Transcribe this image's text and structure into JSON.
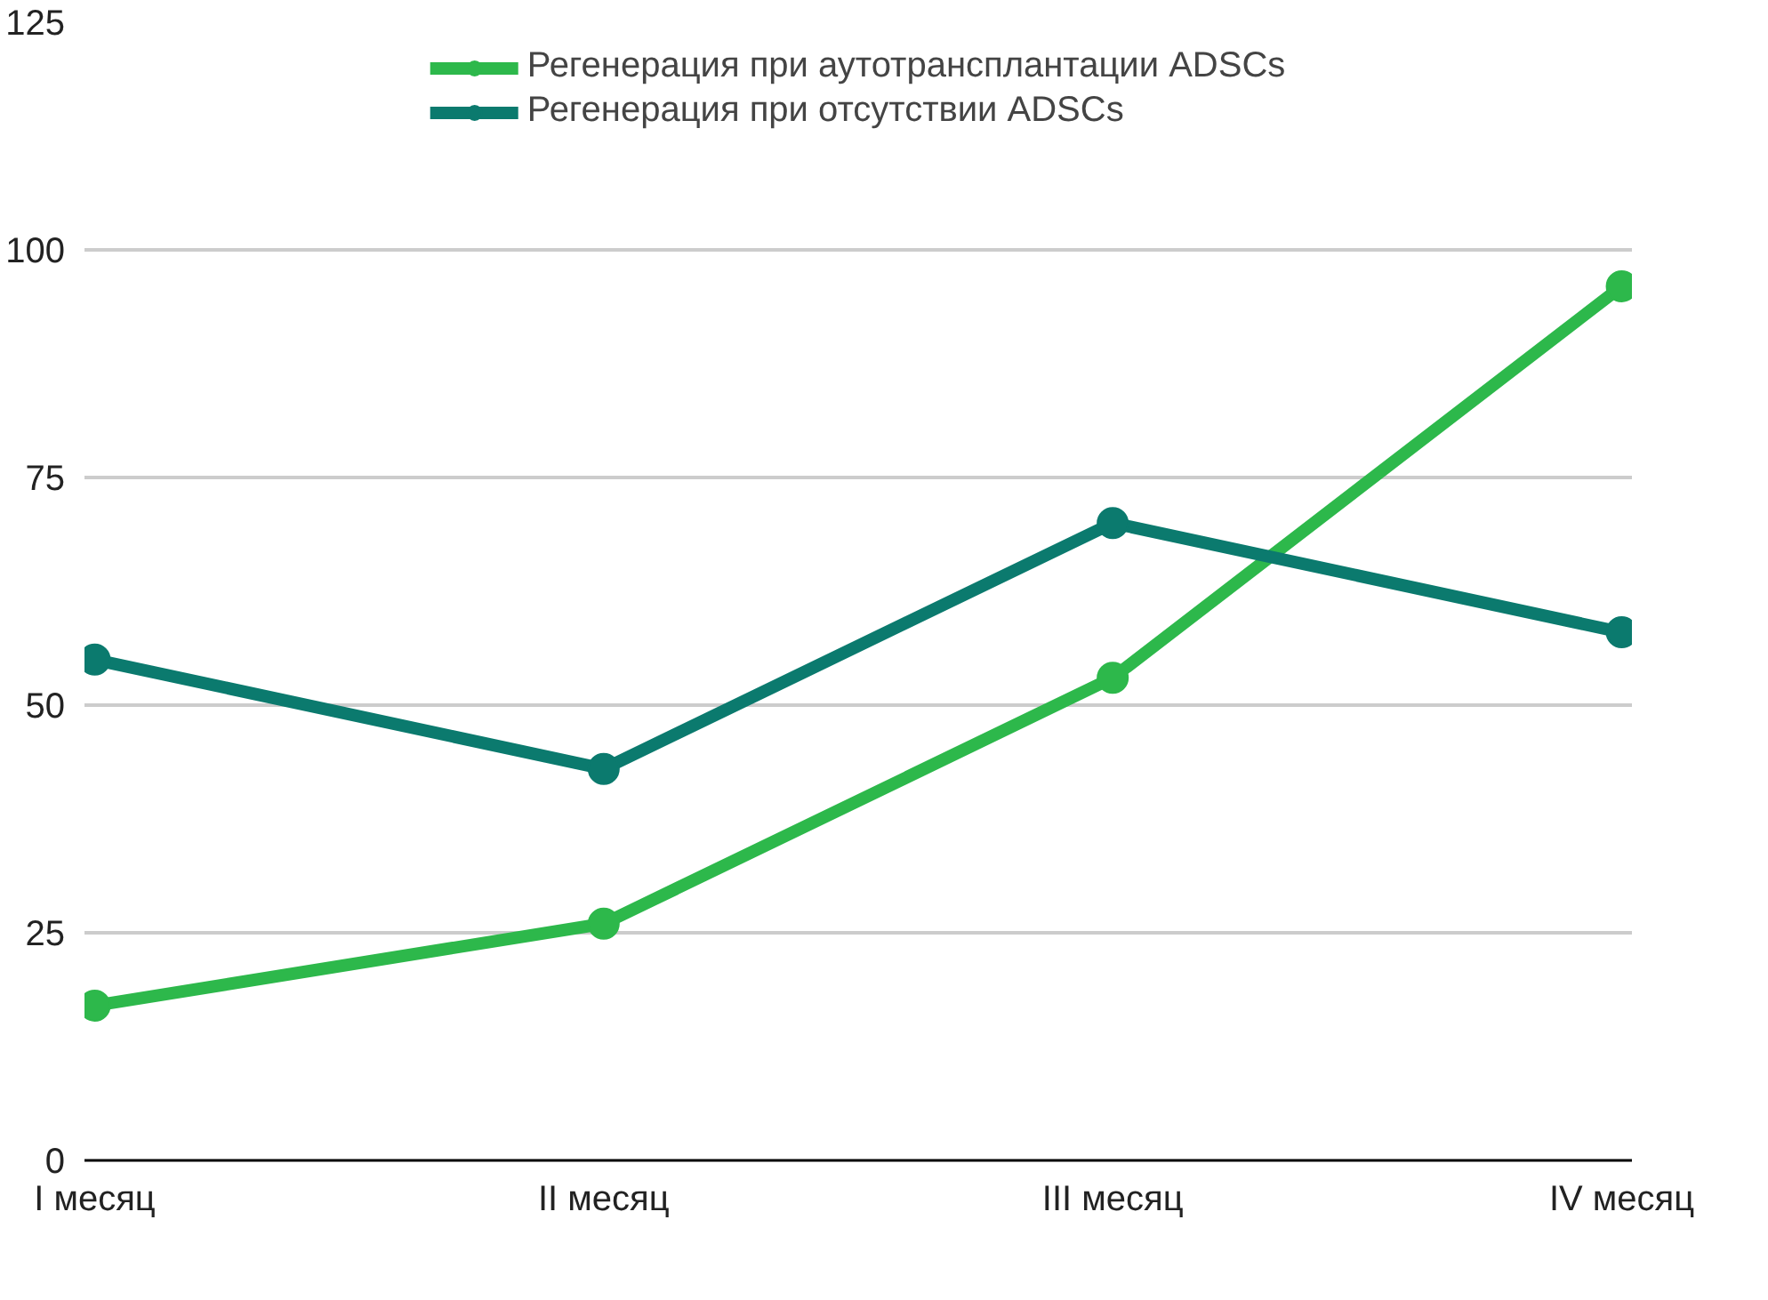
{
  "chart_data": {
    "type": "line",
    "categories": [
      "I месяц",
      "II месяц",
      "III месяц",
      "IV месяц"
    ],
    "series": [
      {
        "name": "Регенерация при аутотрансплантации ADSCs",
        "color": "#2db84b",
        "values": [
          17,
          26,
          53,
          96
        ]
      },
      {
        "name": "Регенерация при отсутствии ADSCs",
        "color": "#0b7a6e",
        "values": [
          55,
          43,
          70,
          58
        ]
      }
    ],
    "ylim": [
      0,
      125
    ],
    "yticks": [
      0,
      25,
      50,
      75,
      100,
      125
    ],
    "grid": "y",
    "legend": "top",
    "marker": "circle",
    "line_style": "solid"
  }
}
